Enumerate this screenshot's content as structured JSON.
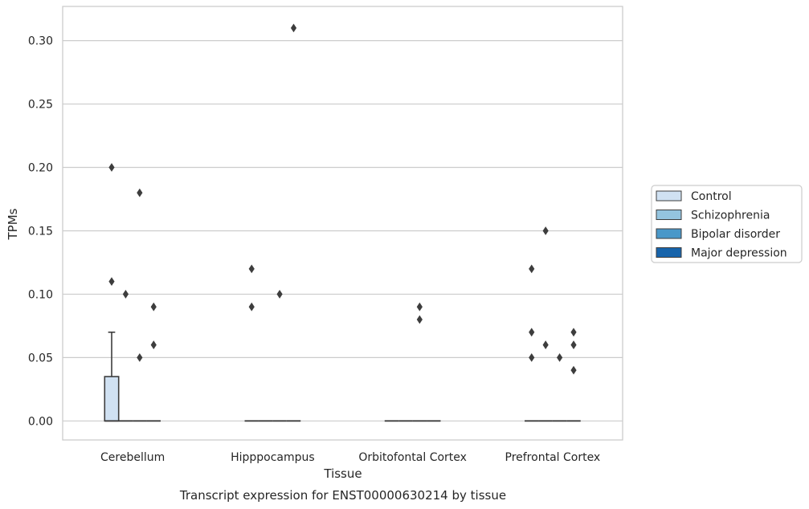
{
  "chart_data": {
    "type": "box",
    "caption": "Transcript expression for ENST00000630214 by tissue",
    "xlabel": "Tissue",
    "ylabel": "TPMs",
    "ylim": [
      -0.015,
      0.327
    ],
    "yticks": [
      0.0,
      0.05,
      0.1,
      0.15,
      0.2,
      0.25,
      0.3
    ],
    "ytick_labels": [
      "0.00",
      "0.05",
      "0.10",
      "0.15",
      "0.20",
      "0.25",
      "0.30"
    ],
    "grid": "horizontal",
    "legend_position": "right",
    "categories": [
      "Cerebellum",
      "Hipppocampus",
      "Orbitofontal Cortex",
      "Prefrontal Cortex"
    ],
    "series": [
      {
        "name": "Control",
        "color": "#d0e1f2",
        "boxes": [
          {
            "q1": 0.0,
            "median": 0.0,
            "q3": 0.035,
            "whisker_low": 0.0,
            "whisker_high": 0.07,
            "outliers": [
              0.11,
              0.2
            ]
          },
          {
            "q1": 0.0,
            "median": 0.0,
            "q3": 0.0,
            "whisker_low": 0.0,
            "whisker_high": 0.0,
            "outliers": [
              0.09,
              0.12
            ]
          },
          {
            "q1": 0.0,
            "median": 0.0,
            "q3": 0.0,
            "whisker_low": 0.0,
            "whisker_high": 0.0,
            "outliers": []
          },
          {
            "q1": 0.0,
            "median": 0.0,
            "q3": 0.0,
            "whisker_low": 0.0,
            "whisker_high": 0.0,
            "outliers": [
              0.05,
              0.07,
              0.12
            ]
          }
        ]
      },
      {
        "name": "Schizophrenia",
        "color": "#94c4df",
        "boxes": [
          {
            "q1": 0.0,
            "median": 0.0,
            "q3": 0.0,
            "whisker_low": 0.0,
            "whisker_high": 0.0,
            "outliers": [
              0.1
            ]
          },
          {
            "q1": 0.0,
            "median": 0.0,
            "q3": 0.0,
            "whisker_low": 0.0,
            "whisker_high": 0.0,
            "outliers": []
          },
          {
            "q1": 0.0,
            "median": 0.0,
            "q3": 0.0,
            "whisker_low": 0.0,
            "whisker_high": 0.0,
            "outliers": []
          },
          {
            "q1": 0.0,
            "median": 0.0,
            "q3": 0.0,
            "whisker_low": 0.0,
            "whisker_high": 0.0,
            "outliers": [
              0.06,
              0.15
            ]
          }
        ]
      },
      {
        "name": "Bipolar disorder",
        "color": "#4a98c9",
        "boxes": [
          {
            "q1": 0.0,
            "median": 0.0,
            "q3": 0.0,
            "whisker_low": 0.0,
            "whisker_high": 0.0,
            "outliers": [
              0.05,
              0.18
            ]
          },
          {
            "q1": 0.0,
            "median": 0.0,
            "q3": 0.0,
            "whisker_low": 0.0,
            "whisker_high": 0.0,
            "outliers": [
              0.1
            ]
          },
          {
            "q1": 0.0,
            "median": 0.0,
            "q3": 0.0,
            "whisker_low": 0.0,
            "whisker_high": 0.0,
            "outliers": [
              0.08,
              0.09
            ]
          },
          {
            "q1": 0.0,
            "median": 0.0,
            "q3": 0.0,
            "whisker_low": 0.0,
            "whisker_high": 0.0,
            "outliers": [
              0.05
            ]
          }
        ]
      },
      {
        "name": "Major depression",
        "color": "#1764ab",
        "boxes": [
          {
            "q1": 0.0,
            "median": 0.0,
            "q3": 0.0,
            "whisker_low": 0.0,
            "whisker_high": 0.0,
            "outliers": [
              0.06,
              0.09
            ]
          },
          {
            "q1": 0.0,
            "median": 0.0,
            "q3": 0.0,
            "whisker_low": 0.0,
            "whisker_high": 0.0,
            "outliers": [
              0.31
            ]
          },
          {
            "q1": 0.0,
            "median": 0.0,
            "q3": 0.0,
            "whisker_low": 0.0,
            "whisker_high": 0.0,
            "outliers": []
          },
          {
            "q1": 0.0,
            "median": 0.0,
            "q3": 0.0,
            "whisker_low": 0.0,
            "whisker_high": 0.0,
            "outliers": [
              0.04,
              0.06,
              0.07
            ]
          }
        ]
      }
    ],
    "colors": {
      "grid": "#cccccc",
      "frame": "#cccccc",
      "box_edge": "#3d3d3d",
      "outlier": "#3d3d3d"
    }
  }
}
